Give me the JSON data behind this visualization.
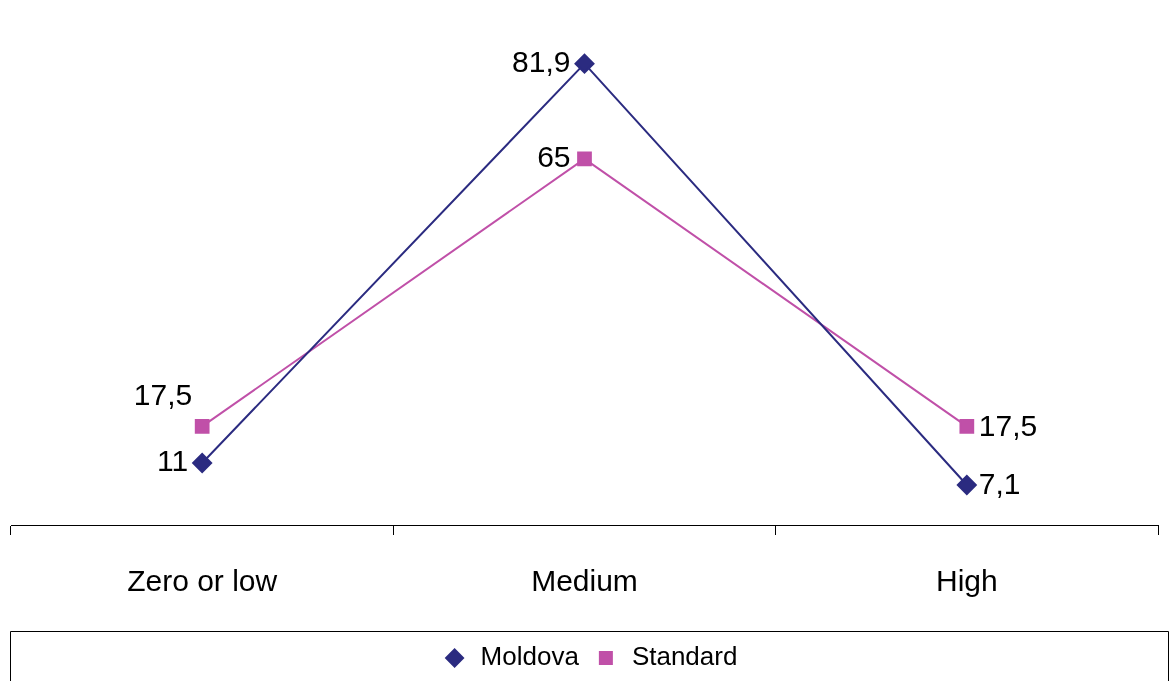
{
  "chart_data": {
    "type": "line",
    "categories": [
      "Zero or low",
      "Medium",
      "High"
    ],
    "series": [
      {
        "name": "Moldova",
        "color": "#2b2b80",
        "marker": "diamond",
        "values": [
          11,
          81.9,
          7.1
        ],
        "value_labels": [
          "11",
          "81,9",
          "7,1"
        ]
      },
      {
        "name": "Standard",
        "color": "#c050a8",
        "marker": "square",
        "values": [
          17.5,
          65,
          17.5
        ],
        "value_labels": [
          "17,5",
          "65",
          "17,5"
        ]
      }
    ],
    "legend": "bottom",
    "grid": false
  }
}
